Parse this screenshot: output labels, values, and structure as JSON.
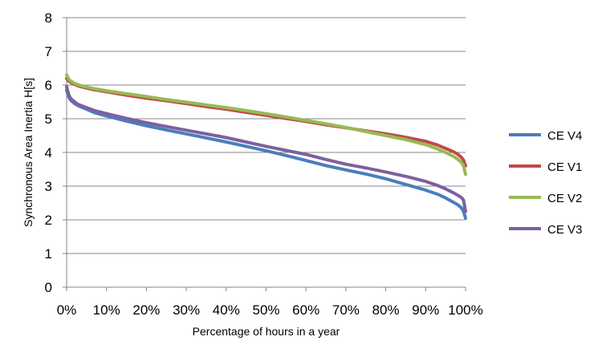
{
  "chart_data": {
    "type": "line",
    "title": "",
    "xlabel": "Percentage of hours in a year",
    "ylabel": "Synchronous Area Inertia H[s]",
    "xlim": [
      0,
      100
    ],
    "ylim": [
      0,
      8
    ],
    "x_ticks": [
      "0%",
      "10%",
      "20%",
      "30%",
      "40%",
      "50%",
      "60%",
      "70%",
      "80%",
      "90%",
      "100%"
    ],
    "y_ticks": [
      "0",
      "1",
      "2",
      "3",
      "4",
      "5",
      "6",
      "7",
      "8"
    ],
    "grid": "horizontal",
    "legend_position": "right",
    "x": [
      0,
      0.5,
      1,
      2,
      3,
      5,
      7,
      10,
      15,
      20,
      25,
      30,
      35,
      40,
      45,
      50,
      55,
      60,
      65,
      70,
      75,
      80,
      85,
      90,
      93,
      95,
      97,
      98,
      99,
      99.5,
      100
    ],
    "series": [
      {
        "name": "CE V4",
        "color": "#4A7EBB",
        "values": [
          5.85,
          5.65,
          5.55,
          5.45,
          5.38,
          5.28,
          5.18,
          5.08,
          4.93,
          4.79,
          4.67,
          4.55,
          4.43,
          4.31,
          4.18,
          4.05,
          3.91,
          3.76,
          3.61,
          3.48,
          3.36,
          3.22,
          3.05,
          2.88,
          2.76,
          2.65,
          2.52,
          2.45,
          2.35,
          2.25,
          2.05
        ]
      },
      {
        "name": "CE V1",
        "color": "#BE4B48",
        "values": [
          6.2,
          6.12,
          6.08,
          6.02,
          5.97,
          5.91,
          5.86,
          5.8,
          5.7,
          5.61,
          5.53,
          5.45,
          5.36,
          5.28,
          5.19,
          5.1,
          5.01,
          4.92,
          4.82,
          4.73,
          4.64,
          4.55,
          4.45,
          4.33,
          4.22,
          4.12,
          4.02,
          3.95,
          3.85,
          3.77,
          3.6
        ]
      },
      {
        "name": "CE V2",
        "color": "#98B954",
        "values": [
          6.3,
          6.18,
          6.12,
          6.05,
          6.0,
          5.94,
          5.89,
          5.83,
          5.74,
          5.66,
          5.57,
          5.49,
          5.41,
          5.33,
          5.24,
          5.15,
          5.05,
          4.95,
          4.85,
          4.74,
          4.62,
          4.5,
          4.38,
          4.23,
          4.1,
          4.0,
          3.88,
          3.8,
          3.7,
          3.6,
          3.35
        ]
      },
      {
        "name": "CE V3",
        "color": "#7D60A0",
        "values": [
          5.95,
          5.72,
          5.6,
          5.5,
          5.42,
          5.33,
          5.24,
          5.15,
          5.01,
          4.88,
          4.77,
          4.66,
          4.55,
          4.44,
          4.31,
          4.18,
          4.06,
          3.94,
          3.79,
          3.65,
          3.54,
          3.42,
          3.29,
          3.14,
          3.02,
          2.92,
          2.8,
          2.73,
          2.66,
          2.58,
          2.25
        ]
      }
    ],
    "legend_order": [
      0,
      1,
      2,
      3
    ]
  }
}
